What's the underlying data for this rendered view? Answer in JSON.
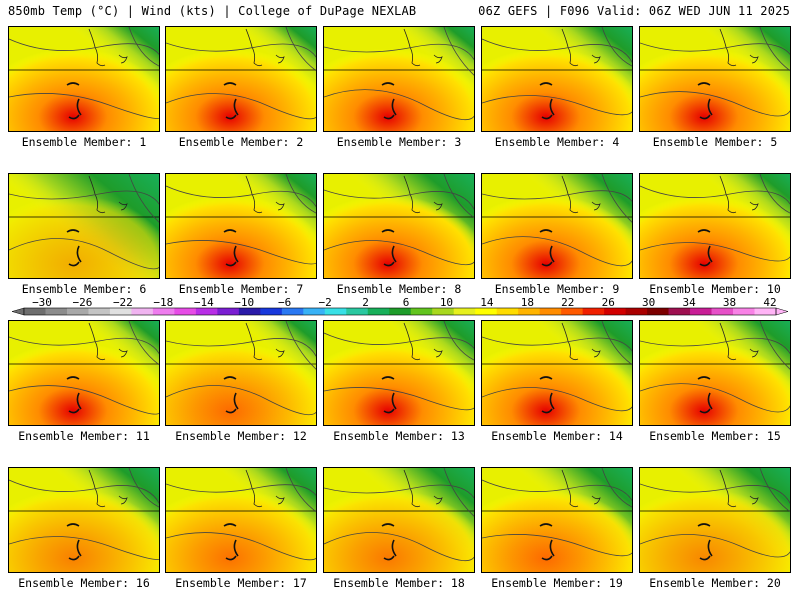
{
  "header": {
    "left": "850mb Temp (°C) | Wind (kts) | College of DuPage NEXLAB",
    "right": "06Z GEFS | F096 Valid: 06Z WED JUN 11 2025"
  },
  "member_label": "Ensemble Member:",
  "members": [
    {
      "id": "1",
      "label": "Ensemble Member: 1",
      "green_extent": 0.35,
      "heat_intensity": 0.8
    },
    {
      "id": "2",
      "label": "Ensemble Member: 2",
      "green_extent": 0.3,
      "heat_intensity": 0.75
    },
    {
      "id": "3",
      "label": "Ensemble Member: 3",
      "green_extent": 0.3,
      "heat_intensity": 0.75
    },
    {
      "id": "4",
      "label": "Ensemble Member: 4",
      "green_extent": 0.4,
      "heat_intensity": 0.8
    },
    {
      "id": "5",
      "label": "Ensemble Member: 5",
      "green_extent": 0.35,
      "heat_intensity": 0.85
    },
    {
      "id": "6",
      "label": "Ensemble Member: 6",
      "green_extent": 0.75,
      "heat_intensity": 0.1
    },
    {
      "id": "7",
      "label": "Ensemble Member: 7",
      "green_extent": 0.35,
      "heat_intensity": 0.8
    },
    {
      "id": "8",
      "label": "Ensemble Member: 8",
      "green_extent": 0.55,
      "heat_intensity": 0.75
    },
    {
      "id": "9",
      "label": "Ensemble Member: 9",
      "green_extent": 0.45,
      "heat_intensity": 0.7
    },
    {
      "id": "10",
      "label": "Ensemble Member: 10",
      "green_extent": 0.35,
      "heat_intensity": 0.85
    },
    {
      "id": "11",
      "label": "Ensemble Member: 11",
      "green_extent": 0.3,
      "heat_intensity": 0.65
    },
    {
      "id": "12",
      "label": "Ensemble Member: 12",
      "green_extent": 0.3,
      "heat_intensity": 0.55
    },
    {
      "id": "13",
      "label": "Ensemble Member: 13",
      "green_extent": 0.35,
      "heat_intensity": 0.7
    },
    {
      "id": "14",
      "label": "Ensemble Member: 14",
      "green_extent": 0.4,
      "heat_intensity": 0.7
    },
    {
      "id": "15",
      "label": "Ensemble Member: 15",
      "green_extent": 0.4,
      "heat_intensity": 0.65
    },
    {
      "id": "16",
      "label": "Ensemble Member: 16",
      "green_extent": 0.45,
      "heat_intensity": 0.4
    },
    {
      "id": "17",
      "label": "Ensemble Member: 17",
      "green_extent": 0.4,
      "heat_intensity": 0.5
    },
    {
      "id": "18",
      "label": "Ensemble Member: 18",
      "green_extent": 0.5,
      "heat_intensity": 0.45
    },
    {
      "id": "19",
      "label": "Ensemble Member: 19",
      "green_extent": 0.5,
      "heat_intensity": 0.55
    },
    {
      "id": "20",
      "label": "Ensemble Member: 20",
      "green_extent": 0.5,
      "heat_intensity": 0.35
    }
  ],
  "colorbar": {
    "ticks": [
      "−30",
      "−26",
      "−22",
      "−18",
      "−14",
      "−10",
      "−6",
      "−2",
      "2",
      "6",
      "10",
      "14",
      "18",
      "22",
      "26",
      "30",
      "34",
      "38",
      "42"
    ],
    "colors": [
      "#6e6e6e",
      "#8c8c8c",
      "#a8a8a8",
      "#c4c4c4",
      "#e0e0e0",
      "#f0b4f0",
      "#ee7cee",
      "#e64ce6",
      "#b82ee6",
      "#7a1ed2",
      "#2a1aa8",
      "#1838dc",
      "#2a78f2",
      "#38b2f6",
      "#38e0e6",
      "#2ac8a0",
      "#18b05a",
      "#1e9c2a",
      "#62c41e",
      "#a8d81e",
      "#e6f01e",
      "#ffff00",
      "#ffdc00",
      "#ffb400",
      "#ff8c00",
      "#ff5a00",
      "#f02000",
      "#d20000",
      "#aa0000",
      "#7c0000",
      "#9e1050",
      "#c81e96",
      "#e650c8",
      "#f882e6",
      "#ffb4f6"
    ]
  }
}
